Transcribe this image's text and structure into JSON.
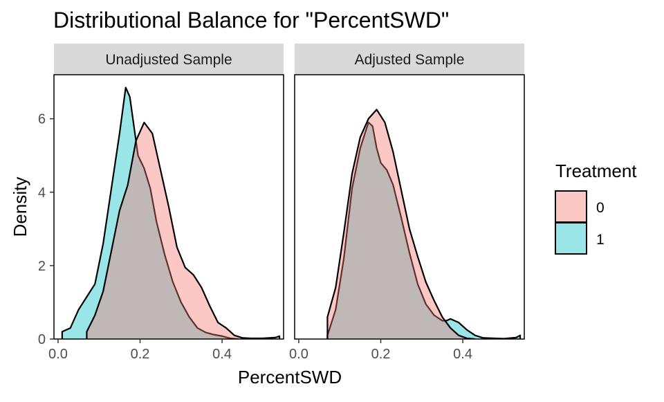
{
  "chart_data": {
    "type": "area",
    "title": "Distributional Balance for \"PercentSWD\"",
    "xlabel": "PercentSWD",
    "ylabel": "Density",
    "xlim": [
      -0.01,
      0.55
    ],
    "ylim": [
      0,
      7.2
    ],
    "x_ticks": [
      0.0,
      0.2,
      0.4
    ],
    "x_tick_labels": [
      "0.0",
      "0.2",
      "0.4"
    ],
    "y_ticks": [
      0,
      2,
      4,
      6
    ],
    "y_tick_labels": [
      "0",
      "2",
      "4",
      "6"
    ],
    "grid": false,
    "legend": {
      "title": "Treatment",
      "position": "right",
      "entries": [
        {
          "label": "0",
          "fill": "#F8766D"
        },
        {
          "label": "1",
          "fill": "#00BFC4"
        }
      ]
    },
    "fill_opacity": 0.4,
    "panels": [
      {
        "label": "Unadjusted Sample",
        "series": [
          {
            "name": "1",
            "color": "#00BFC4",
            "points": [
              [
                0.01,
                0
              ],
              [
                0.01,
                0.2
              ],
              [
                0.03,
                0.3
              ],
              [
                0.05,
                0.8
              ],
              [
                0.07,
                1.15
              ],
              [
                0.09,
                1.5
              ],
              [
                0.11,
                2.6
              ],
              [
                0.13,
                4.1
              ],
              [
                0.15,
                5.6
              ],
              [
                0.165,
                6.85
              ],
              [
                0.175,
                6.6
              ],
              [
                0.185,
                5.8
              ],
              [
                0.195,
                5.0
              ],
              [
                0.21,
                4.65
              ],
              [
                0.225,
                4.1
              ],
              [
                0.24,
                3.2
              ],
              [
                0.26,
                2.3
              ],
              [
                0.28,
                1.55
              ],
              [
                0.3,
                1.0
              ],
              [
                0.32,
                0.6
              ],
              [
                0.34,
                0.3
              ],
              [
                0.36,
                0.18
              ],
              [
                0.38,
                0.12
              ],
              [
                0.4,
                0.08
              ],
              [
                0.42,
                0.02
              ],
              [
                0.44,
                0
              ]
            ]
          },
          {
            "name": "0",
            "color": "#F8766D",
            "points": [
              [
                0.07,
                0
              ],
              [
                0.07,
                0.2
              ],
              [
                0.09,
                0.65
              ],
              [
                0.11,
                1.3
              ],
              [
                0.13,
                2.4
              ],
              [
                0.15,
                3.5
              ],
              [
                0.17,
                4.2
              ],
              [
                0.19,
                5.4
              ],
              [
                0.21,
                5.9
              ],
              [
                0.23,
                5.6
              ],
              [
                0.25,
                4.6
              ],
              [
                0.27,
                3.6
              ],
              [
                0.29,
                2.5
              ],
              [
                0.31,
                1.95
              ],
              [
                0.33,
                1.75
              ],
              [
                0.35,
                1.4
              ],
              [
                0.37,
                0.9
              ],
              [
                0.39,
                0.45
              ],
              [
                0.41,
                0.3
              ],
              [
                0.43,
                0.1
              ],
              [
                0.45,
                0.03
              ],
              [
                0.47,
                0.02
              ],
              [
                0.5,
                0.02
              ],
              [
                0.53,
                0.04
              ],
              [
                0.54,
                0.08
              ],
              [
                0.54,
                0
              ]
            ]
          }
        ]
      },
      {
        "label": "Adjusted Sample",
        "series": [
          {
            "name": "1",
            "color": "#00BFC4",
            "points": [
              [
                0.07,
                0
              ],
              [
                0.07,
                0.1
              ],
              [
                0.09,
                0.8
              ],
              [
                0.11,
                2.2
              ],
              [
                0.13,
                4.1
              ],
              [
                0.15,
                5.2
              ],
              [
                0.17,
                5.9
              ],
              [
                0.18,
                5.8
              ],
              [
                0.19,
                5.2
              ],
              [
                0.2,
                4.8
              ],
              [
                0.215,
                4.6
              ],
              [
                0.23,
                4.2
              ],
              [
                0.25,
                3.3
              ],
              [
                0.27,
                2.35
              ],
              [
                0.29,
                1.5
              ],
              [
                0.31,
                0.95
              ],
              [
                0.33,
                0.65
              ],
              [
                0.35,
                0.5
              ],
              [
                0.36,
                0.5
              ],
              [
                0.37,
                0.55
              ],
              [
                0.39,
                0.45
              ],
              [
                0.41,
                0.25
              ],
              [
                0.43,
                0.1
              ],
              [
                0.45,
                0.03
              ],
              [
                0.5,
                0.01
              ],
              [
                0.53,
                0.04
              ],
              [
                0.54,
                0.1
              ],
              [
                0.54,
                0
              ]
            ]
          },
          {
            "name": "0",
            "color": "#F8766D",
            "points": [
              [
                0.07,
                0
              ],
              [
                0.07,
                0.6
              ],
              [
                0.09,
                1.4
              ],
              [
                0.11,
                2.9
              ],
              [
                0.13,
                4.5
              ],
              [
                0.15,
                5.5
              ],
              [
                0.17,
                6.0
              ],
              [
                0.19,
                6.25
              ],
              [
                0.21,
                5.9
              ],
              [
                0.23,
                5.1
              ],
              [
                0.25,
                4.05
              ],
              [
                0.27,
                3.0
              ],
              [
                0.29,
                2.25
              ],
              [
                0.31,
                1.55
              ],
              [
                0.33,
                1.05
              ],
              [
                0.35,
                0.6
              ],
              [
                0.37,
                0.3
              ],
              [
                0.39,
                0.1
              ],
              [
                0.41,
                0.02
              ],
              [
                0.43,
                0
              ]
            ]
          }
        ]
      }
    ]
  }
}
